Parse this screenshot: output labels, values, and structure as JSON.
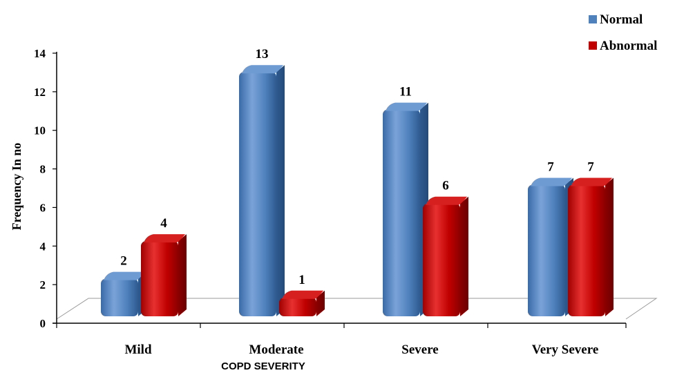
{
  "chart_data": {
    "type": "bar",
    "title": "",
    "xlabel": "COPD SEVERITY",
    "ylabel": "Frequency In no",
    "categories": [
      "Mild",
      "Moderate",
      "Severe",
      "Very Severe"
    ],
    "series": [
      {
        "name": "Normal",
        "values": [
          2,
          13,
          11,
          7
        ],
        "color": "#4f81bd"
      },
      {
        "name": "Abnormal",
        "values": [
          4,
          1,
          6,
          7
        ],
        "color": "#c00000"
      }
    ],
    "ylim": [
      0,
      14
    ],
    "yticks": [
      "0",
      "2",
      "4",
      "6",
      "8",
      "10",
      "12",
      "14"
    ],
    "data_labels": [
      "2",
      "13",
      "11",
      "7",
      "4",
      "1",
      "6",
      "7"
    ],
    "legend_position": "top-right",
    "grid": false,
    "style": "3d-cylinder"
  }
}
